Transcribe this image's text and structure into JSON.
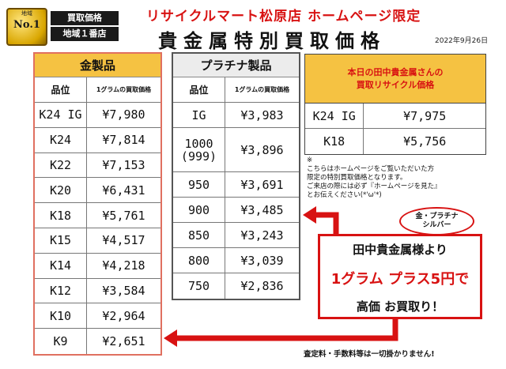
{
  "badge": {
    "region": "地域",
    "no1": "No.1",
    "line1": "買取価格",
    "line2": "地域１番店"
  },
  "header": {
    "title": "リサイクルマート松原店 ホームページ限定",
    "subtitle": "貴金属特別買取価格",
    "date": "2022年9月26日"
  },
  "gold": {
    "title": "金製品",
    "col_grade": "品位",
    "col_price": "1グラムの買取価格",
    "rows": [
      {
        "grade": "K24 IG",
        "price": "¥7,980"
      },
      {
        "grade": "K24",
        "price": "¥7,814"
      },
      {
        "grade": "K22",
        "price": "¥7,153"
      },
      {
        "grade": "K20",
        "price": "¥6,431"
      },
      {
        "grade": "K18",
        "price": "¥5,761"
      },
      {
        "grade": "K15",
        "price": "¥4,517"
      },
      {
        "grade": "K14",
        "price": "¥4,218"
      },
      {
        "grade": "K12",
        "price": "¥3,584"
      },
      {
        "grade": "K10",
        "price": "¥2,964"
      },
      {
        "grade": "K9",
        "price": "¥2,651"
      }
    ]
  },
  "platinum": {
    "title": "プラチナ製品",
    "col_grade": "品位",
    "col_price": "1グラムの買取価格",
    "rows": [
      {
        "grade": "IG",
        "price": "¥3,983"
      },
      {
        "grade": "1000",
        "grade2": "(999)",
        "price": "¥3,896"
      },
      {
        "grade": "950",
        "price": "¥3,691"
      },
      {
        "grade": "900",
        "price": "¥3,485"
      },
      {
        "grade": "850",
        "price": "¥3,243"
      },
      {
        "grade": "800",
        "price": "¥3,039"
      },
      {
        "grade": "750",
        "price": "¥2,836"
      }
    ]
  },
  "tanaka": {
    "title_line1": "本日の田中貴金属さんの",
    "title_line2": "買取リサイクル価格",
    "rows": [
      {
        "grade": "K24 IG",
        "price": "¥7,975"
      },
      {
        "grade": "K18",
        "price": "¥5,756"
      }
    ]
  },
  "note": {
    "mark": "※",
    "lines": [
      "こちらはホームページをご覧いただいた方",
      "限定の特別買取価格となります。",
      "ご来店の際には必ず『ホームページを見た』",
      "とお伝えください(*'ω'*)"
    ]
  },
  "bubble": {
    "line1": "金・プラチナ",
    "line2": "シルバー"
  },
  "promo": {
    "line1": "田中貴金属様より",
    "line2": "1グラム プラス5円で",
    "line3": "高価 お買取り！"
  },
  "footer": "査定料・手数料等は一切掛かりません!",
  "colors": {
    "accent_red": "#d81212",
    "gold": "#f5c242"
  }
}
